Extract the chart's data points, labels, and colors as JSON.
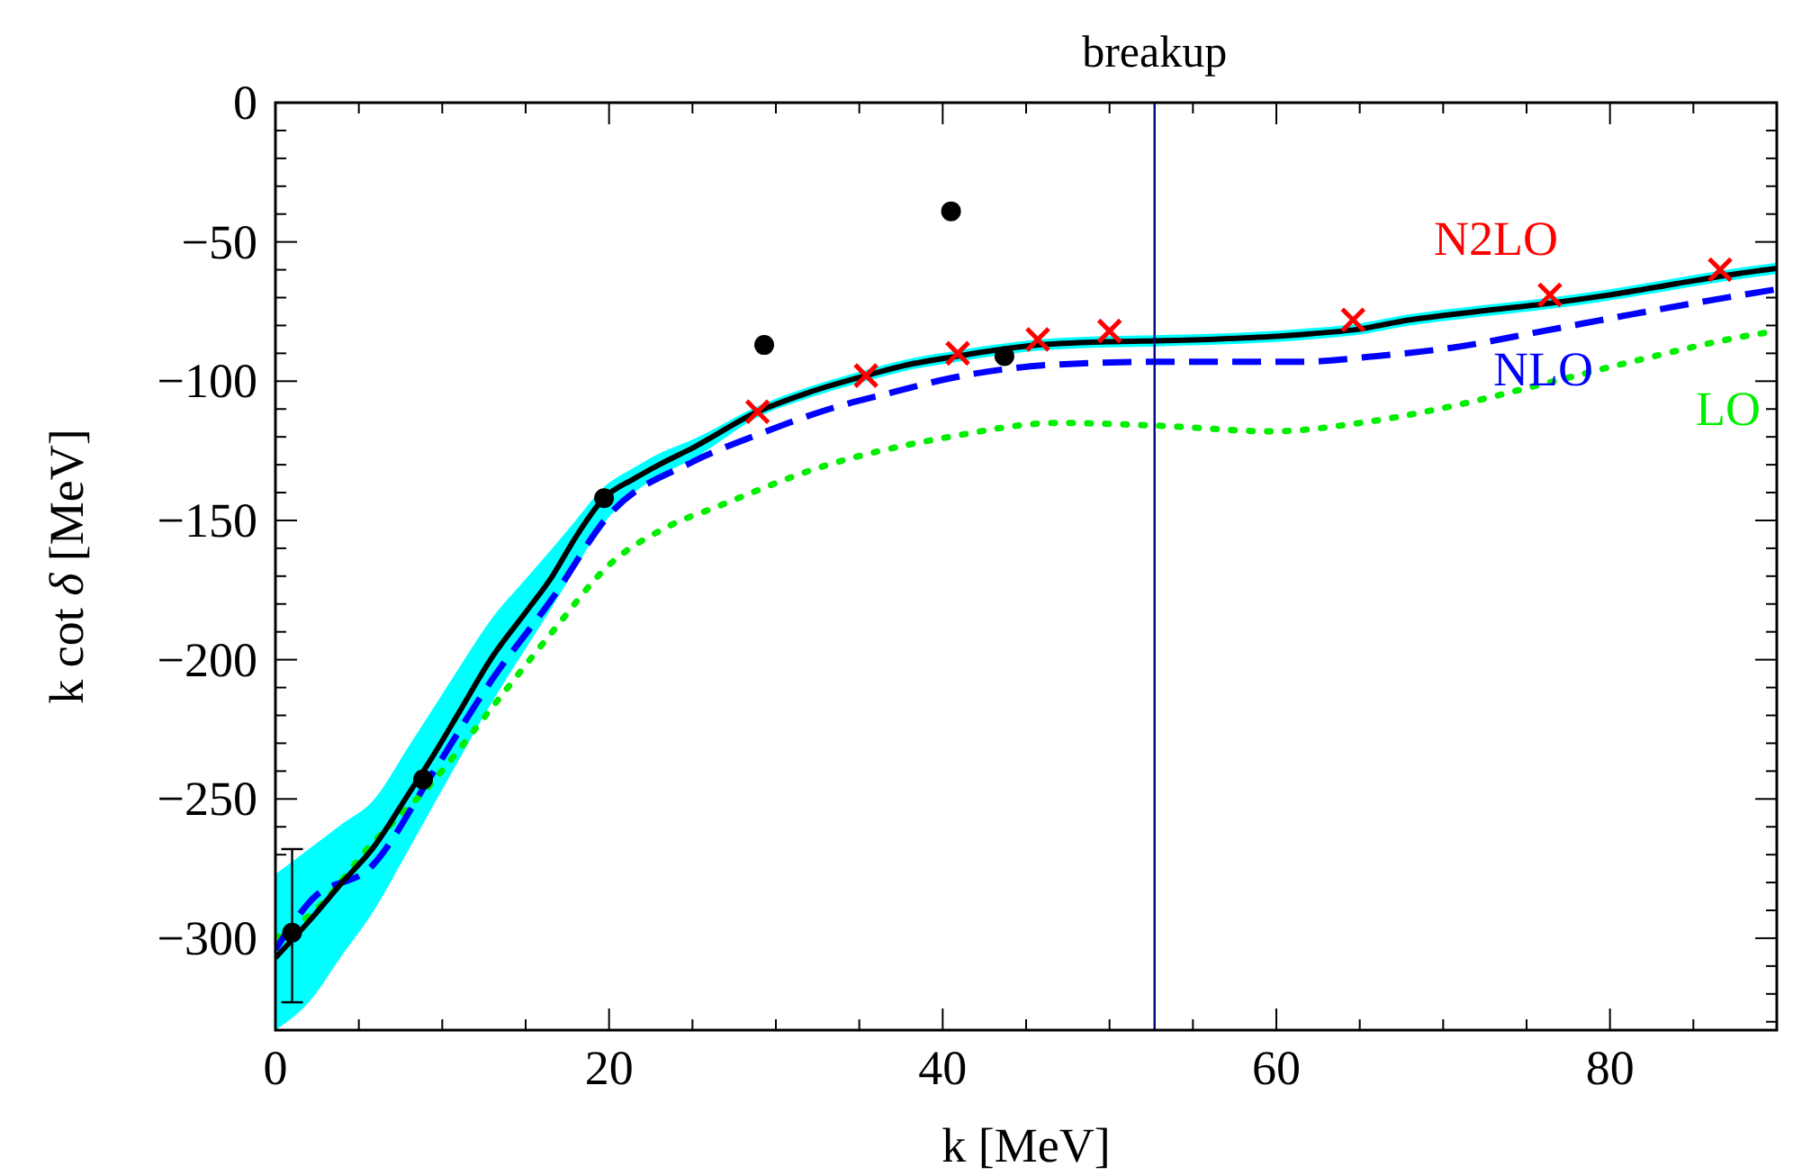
{
  "chart_data": {
    "type": "line",
    "xlabel": "k [MeV]",
    "ylabel": "k cot δ [MeV]",
    "xlim": [
      0,
      90
    ],
    "ylim": [
      -333,
      0
    ],
    "xticks": [
      0,
      {
        "value": 5,
        "label": null
      },
      {
        "value": 10,
        "label": null
      },
      {
        "value": 15,
        "label": null
      },
      20,
      {
        "value": 25,
        "label": null
      },
      {
        "value": 30,
        "label": null
      },
      {
        "value": 35,
        "label": null
      },
      40,
      {
        "value": 45,
        "label": null
      },
      {
        "value": 50,
        "label": null
      },
      {
        "value": 55,
        "label": null
      },
      60,
      {
        "value": 65,
        "label": null
      },
      {
        "value": 70,
        "label": null
      },
      {
        "value": 75,
        "label": null
      },
      80,
      {
        "value": 85,
        "label": null
      }
    ],
    "yticks": [
      0,
      {
        "value": -10,
        "label": null
      },
      {
        "value": -20,
        "label": null
      },
      {
        "value": -30,
        "label": null
      },
      {
        "value": -40,
        "label": null
      },
      -50,
      {
        "value": -60,
        "label": null
      },
      {
        "value": -70,
        "label": null
      },
      {
        "value": -80,
        "label": null
      },
      {
        "value": -90,
        "label": null
      },
      -100,
      {
        "value": -110,
        "label": null
      },
      {
        "value": -120,
        "label": null
      },
      {
        "value": -130,
        "label": null
      },
      {
        "value": -140,
        "label": null
      },
      -150,
      {
        "value": -160,
        "label": null
      },
      {
        "value": -170,
        "label": null
      },
      {
        "value": -180,
        "label": null
      },
      {
        "value": -190,
        "label": null
      },
      -200,
      {
        "value": -210,
        "label": null
      },
      {
        "value": -220,
        "label": null
      },
      {
        "value": -230,
        "label": null
      },
      {
        "value": -240,
        "label": null
      },
      -250,
      {
        "value": -260,
        "label": null
      },
      {
        "value": -270,
        "label": null
      },
      {
        "value": -280,
        "label": null
      },
      {
        "value": -290,
        "label": null
      },
      -300,
      {
        "value": -310,
        "label": null
      },
      {
        "value": -320,
        "label": null
      },
      {
        "value": -330,
        "label": null
      }
    ],
    "ref_lines": [
      {
        "axis": "x",
        "value": 52.7,
        "label": "breakup",
        "color": "#000080"
      }
    ],
    "series": [
      {
        "color": "#00ee00",
        "line_style": "dotted",
        "name": "LO",
        "x": [
          0,
          2.2,
          5.8,
          9.4,
          13,
          16.6,
          20,
          23.6,
          26.5,
          32.6,
          40.4,
          46.9,
          53,
          59.7,
          65,
          70.5,
          76,
          81.3,
          88.9,
          90
        ],
        "values": [
          -300,
          -291,
          -266,
          -244,
          -217,
          -190,
          -166,
          -152,
          -145,
          -131,
          -120,
          -115,
          -116,
          -118,
          -115,
          -109,
          -101,
          -93,
          -83,
          -82
        ]
      },
      {
        "color": "#0000ff",
        "line_style": "dashed",
        "name": "NLO",
        "x": [
          0,
          2.2,
          5.8,
          9.4,
          13,
          16.6,
          20,
          25,
          29,
          33.2,
          37,
          40.4,
          46.9,
          53.6,
          61.5,
          66,
          70.5,
          76,
          81.3,
          86,
          90
        ],
        "values": [
          -304,
          -286,
          -274,
          -241,
          -207,
          -178,
          -148,
          -129,
          -119,
          -110,
          -104,
          -99,
          -94,
          -93,
          -93,
          -91,
          -88,
          -82,
          -76,
          -71,
          -67
        ]
      },
      {
        "color": "#000000",
        "line_style": "solid",
        "x": [
          0,
          2,
          4,
          5.8,
          8,
          9.4,
          11,
          13,
          15,
          16.6,
          18,
          19.7,
          21.5,
          23,
          25,
          28.9,
          32,
          35.4,
          38,
          40.9,
          43,
          45.8,
          49,
          52.7,
          56,
          59.7,
          62,
          64.6,
          68,
          72,
          76.4,
          80,
          84,
          87,
          90
        ],
        "values": [
          -307,
          -294,
          -280,
          -268,
          -248,
          -235,
          -219,
          -199,
          -183,
          -170,
          -156,
          -142,
          -135,
          -130,
          -124,
          -111,
          -104,
          -98,
          -94,
          -91,
          -89,
          -87,
          -86,
          -85.5,
          -85,
          -84,
          -83,
          -81.6,
          -78,
          -75,
          -72,
          -69,
          -65,
          -62,
          -59.5
        ],
        "lower": [
          -333,
          -323,
          -306,
          -291,
          -268,
          -253,
          -236,
          -215,
          -196,
          -181,
          -167,
          -151,
          -140,
          -134,
          -128,
          -113,
          -106,
          -100,
          -96,
          -93,
          -91,
          -89,
          -88,
          -87.5,
          -87,
          -86,
          -85,
          -83.6,
          -80,
          -77,
          -74,
          -71,
          -67,
          -64,
          -61.5
        ],
        "upper": [
          -277,
          -268,
          -259,
          -251,
          -231,
          -218,
          -203,
          -185,
          -171,
          -160,
          -150,
          -138,
          -131,
          -126,
          -121,
          -109,
          -102,
          -96,
          -92,
          -89,
          -87,
          -85,
          -84,
          -83.5,
          -83,
          -82,
          -81,
          -79.6,
          -76,
          -73,
          -70,
          -67,
          -63,
          -60,
          -57.5
        ]
      },
      {
        "type": "scatter",
        "color": "#000000",
        "marker": "circle",
        "x": [
          1,
          8.85,
          19.7,
          29.3,
          40.5,
          43.7
        ],
        "values": [
          -298,
          -243,
          -142,
          -87,
          -39,
          -91
        ],
        "errors": [
          [
            -323,
            -268
          ],
          null,
          null,
          null,
          null,
          null
        ]
      },
      {
        "type": "scatter",
        "color": "#ff0000",
        "marker": "cross",
        "name": "N2LO",
        "x": [
          28.9,
          35.4,
          40.9,
          45.7,
          50,
          64.6,
          76.4,
          86.6
        ],
        "values": [
          -111,
          -98,
          -90,
          -85,
          -82,
          -78,
          -69,
          -60
        ]
      }
    ]
  }
}
